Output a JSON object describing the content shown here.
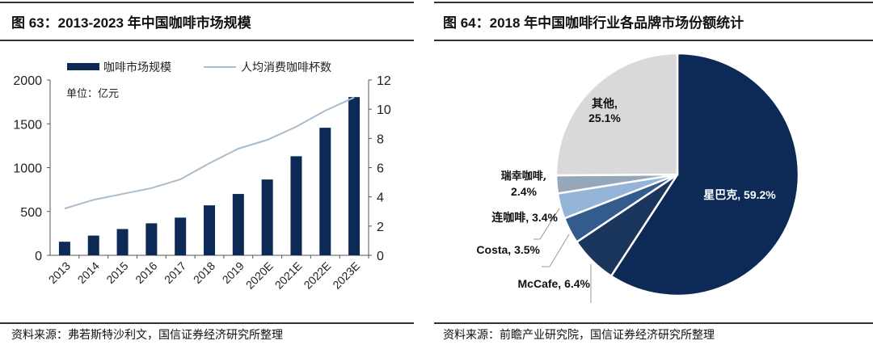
{
  "left": {
    "title": "图 63：2013-2023 年中国咖啡市场规模",
    "source": "资料来源：弗若斯特沙利文，国信证券经济研究所整理"
  },
  "right": {
    "title": "图 64：2018 年中国咖啡行业各品牌市场份额统计",
    "source": "资料来源：前瞻产业研究院，国信证券经济研究所整理"
  },
  "chart_data": [
    {
      "type": "bar",
      "title": "2013-2023 年中国咖啡市场规模",
      "unit_note": "单位：亿元",
      "categories": [
        "2013",
        "2014",
        "2015",
        "2016",
        "2017",
        "2018",
        "2019",
        "2020E",
        "2021E",
        "2022E",
        "2023E"
      ],
      "series": [
        {
          "name": "咖啡市场规模",
          "type": "bar",
          "axis": "left",
          "color": "#0c2a55",
          "values": [
            155,
            225,
            300,
            365,
            430,
            570,
            700,
            865,
            1130,
            1455,
            1805
          ]
        },
        {
          "name": "人均消费咖啡杯数",
          "type": "line",
          "axis": "right",
          "color": "#a9bccd",
          "values": [
            3.2,
            3.8,
            4.2,
            4.6,
            5.2,
            6.3,
            7.3,
            7.9,
            8.8,
            9.9,
            10.8
          ]
        }
      ],
      "ylim": [
        0,
        2000
      ],
      "yticks": [
        "0",
        "500",
        "1000",
        "1500",
        "2000"
      ],
      "y2lim": [
        0,
        12
      ],
      "y2ticks": [
        "0",
        "2",
        "4",
        "6",
        "8",
        "10",
        "12"
      ],
      "legend": "top"
    },
    {
      "type": "pie",
      "title": "2018 年中国咖啡行业各品牌市场份额统计",
      "slices": [
        {
          "name": "星巴克",
          "value": 59.2,
          "label": "星巴克, 59.2%",
          "color": "#0c2a55"
        },
        {
          "name": "McCafe",
          "value": 6.4,
          "label": "McCafe, 6.4%",
          "color": "#1b365d"
        },
        {
          "name": "Costa",
          "value": 3.5,
          "label": "Costa, 3.5%",
          "color": "#335c8d"
        },
        {
          "name": "连咖啡",
          "value": 3.4,
          "label": "连咖啡, 3.4%",
          "color": "#94b4d8"
        },
        {
          "name": "瑞幸咖啡",
          "value": 2.4,
          "label1": "瑞幸咖啡,",
          "label2": "2.4%",
          "color": "#95a7b8"
        },
        {
          "name": "其他",
          "value": 25.1,
          "label1": "其他,",
          "label2": "25.1%",
          "color": "#d9d9d9"
        }
      ]
    }
  ]
}
